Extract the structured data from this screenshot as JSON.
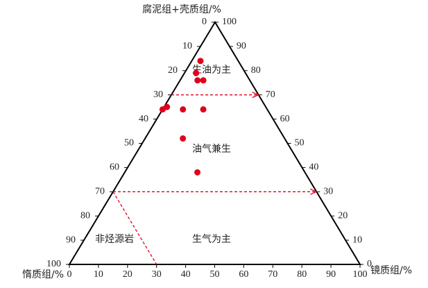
{
  "chart_data": {
    "type": "ternary",
    "axes": {
      "top": "腐泥组+壳质组/%",
      "left": "惰质组/%",
      "right": "镜质组/%"
    },
    "ticks": [
      0,
      10,
      20,
      30,
      40,
      50,
      60,
      70,
      80,
      90,
      100
    ],
    "points": {
      "color": "#e0001b",
      "a": [
        84,
        79,
        76,
        76,
        65,
        64,
        64,
        64,
        52,
        38
      ],
      "b": [
        13,
        17,
        18,
        16,
        34,
        36,
        29,
        22,
        35,
        37
      ],
      "c": [
        3,
        4,
        6,
        8,
        1,
        0,
        7,
        14,
        13,
        25
      ]
    },
    "boundaries": [
      {
        "component": "a",
        "value": 70
      },
      {
        "component": "a",
        "value": 30
      },
      {
        "component": "b",
        "value": 70
      }
    ],
    "boundary_color": "#e0001b",
    "regions": [
      "生油为主",
      "油气兼生",
      "生气为主",
      "非烃源岩"
    ]
  }
}
